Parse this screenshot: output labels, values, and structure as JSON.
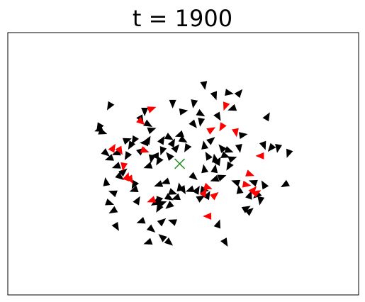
{
  "chart_data": {
    "type": "scatter",
    "title": "t = 1900",
    "xlabel": "",
    "ylabel": "",
    "xlim": [
      0,
      100
    ],
    "ylim": [
      0,
      100
    ],
    "grid": false,
    "axes_ticks": false,
    "colors": {
      "agent": "#000000",
      "highlighted_agent": "#ff0000",
      "center_marker": "#228b22"
    },
    "center": {
      "x": 49,
      "y": 50,
      "marker": "x-cross"
    },
    "series": [
      {
        "points": [
          {
            "x": 56,
            "y": 80,
            "angle": -80
          },
          {
            "x": 47,
            "y": 73,
            "angle": -90
          },
          {
            "x": 59,
            "y": 76,
            "angle": -70
          },
          {
            "x": 60,
            "y": 68,
            "angle": -60
          },
          {
            "x": 63,
            "y": 77,
            "angle": -10
          },
          {
            "x": 66,
            "y": 77,
            "angle": 50
          },
          {
            "x": 50,
            "y": 70,
            "angle": 10
          },
          {
            "x": 55,
            "y": 69,
            "angle": -30
          },
          {
            "x": 55,
            "y": 66,
            "angle": -100
          },
          {
            "x": 53,
            "y": 65,
            "angle": -50
          },
          {
            "x": 49,
            "y": 61,
            "angle": 200
          },
          {
            "x": 50,
            "y": 59,
            "angle": -30
          },
          {
            "x": 51,
            "y": 56,
            "angle": -120
          },
          {
            "x": 56,
            "y": 57,
            "angle": 100
          },
          {
            "x": 58,
            "y": 59,
            "angle": 40
          },
          {
            "x": 57,
            "y": 53,
            "angle": 120
          },
          {
            "x": 59,
            "y": 52,
            "angle": 100
          },
          {
            "x": 60,
            "y": 51,
            "angle": 60
          },
          {
            "x": 63,
            "y": 55,
            "angle": -20
          },
          {
            "x": 61,
            "y": 56,
            "angle": 130
          },
          {
            "x": 59,
            "y": 48,
            "angle": 80
          },
          {
            "x": 56,
            "y": 48,
            "angle": 100
          },
          {
            "x": 59,
            "y": 44,
            "angle": -160
          },
          {
            "x": 56,
            "y": 40,
            "angle": -10
          },
          {
            "x": 57,
            "y": 38,
            "angle": 60
          },
          {
            "x": 55,
            "y": 37,
            "angle": 30
          },
          {
            "x": 48,
            "y": 37,
            "angle": -160
          },
          {
            "x": 50,
            "y": 40,
            "angle": -60
          },
          {
            "x": 47,
            "y": 39,
            "angle": -20
          },
          {
            "x": 43,
            "y": 36,
            "angle": -110
          },
          {
            "x": 42,
            "y": 35,
            "angle": -150
          },
          {
            "x": 46,
            "y": 34,
            "angle": -140
          },
          {
            "x": 43,
            "y": 33,
            "angle": -120
          },
          {
            "x": 37,
            "y": 36,
            "angle": 60
          },
          {
            "x": 36,
            "y": 42,
            "angle": -120
          },
          {
            "x": 30,
            "y": 39,
            "angle": 160
          },
          {
            "x": 30,
            "y": 32,
            "angle": 210
          },
          {
            "x": 28,
            "y": 43,
            "angle": 100
          },
          {
            "x": 32,
            "y": 45,
            "angle": -40
          },
          {
            "x": 31,
            "y": 54,
            "angle": 200
          },
          {
            "x": 34,
            "y": 53,
            "angle": 240
          },
          {
            "x": 35,
            "y": 57,
            "angle": -120
          },
          {
            "x": 36,
            "y": 59,
            "angle": 240
          },
          {
            "x": 39,
            "y": 58,
            "angle": 180
          },
          {
            "x": 38,
            "y": 55,
            "angle": 40
          },
          {
            "x": 40,
            "y": 59,
            "angle": 60
          },
          {
            "x": 41,
            "y": 52,
            "angle": -100
          },
          {
            "x": 42,
            "y": 53,
            "angle": 180
          },
          {
            "x": 44,
            "y": 55,
            "angle": -110
          },
          {
            "x": 46,
            "y": 53,
            "angle": 130
          },
          {
            "x": 47,
            "y": 58,
            "angle": 60
          },
          {
            "x": 48,
            "y": 56,
            "angle": 50
          },
          {
            "x": 46,
            "y": 60,
            "angle": -30
          },
          {
            "x": 44,
            "y": 59,
            "angle": 60
          },
          {
            "x": 40,
            "y": 65,
            "angle": -30
          },
          {
            "x": 41,
            "y": 63,
            "angle": 20
          },
          {
            "x": 38,
            "y": 67,
            "angle": -60
          },
          {
            "x": 39,
            "y": 70,
            "angle": -90
          },
          {
            "x": 29,
            "y": 72,
            "angle": -120
          },
          {
            "x": 27,
            "y": 62,
            "angle": -20
          },
          {
            "x": 26,
            "y": 63,
            "angle": -160
          },
          {
            "x": 28,
            "y": 54,
            "angle": -40
          },
          {
            "x": 31,
            "y": 49,
            "angle": -160
          },
          {
            "x": 41,
            "y": 25,
            "angle": -40
          },
          {
            "x": 40,
            "y": 20,
            "angle": -160
          },
          {
            "x": 44,
            "y": 22,
            "angle": 140
          },
          {
            "x": 46,
            "y": 20,
            "angle": -40
          },
          {
            "x": 62,
            "y": 20,
            "angle": -60
          },
          {
            "x": 60,
            "y": 27,
            "angle": 70
          },
          {
            "x": 68,
            "y": 33,
            "angle": 30
          },
          {
            "x": 69,
            "y": 32,
            "angle": 40
          },
          {
            "x": 71,
            "y": 38,
            "angle": -140
          },
          {
            "x": 72,
            "y": 36,
            "angle": -100
          },
          {
            "x": 73,
            "y": 42,
            "angle": 120
          },
          {
            "x": 70,
            "y": 43,
            "angle": 160
          },
          {
            "x": 69,
            "y": 38,
            "angle": 70
          },
          {
            "x": 73,
            "y": 57,
            "angle": -70
          },
          {
            "x": 75,
            "y": 56,
            "angle": -130
          },
          {
            "x": 77,
            "y": 56,
            "angle": -100
          },
          {
            "x": 80,
            "y": 54,
            "angle": -110
          },
          {
            "x": 79,
            "y": 42,
            "angle": -150
          },
          {
            "x": 74,
            "y": 68,
            "angle": 60
          },
          {
            "x": 64,
            "y": 52,
            "angle": 20
          },
          {
            "x": 66,
            "y": 56,
            "angle": -80
          },
          {
            "x": 67,
            "y": 61,
            "angle": 10
          },
          {
            "x": 62,
            "y": 53,
            "angle": -20
          },
          {
            "x": 31,
            "y": 26,
            "angle": -60
          },
          {
            "x": 29,
            "y": 35,
            "angle": -20
          },
          {
            "x": 26,
            "y": 64,
            "angle": -120
          },
          {
            "x": 43,
            "y": 42,
            "angle": 200
          },
          {
            "x": 46,
            "y": 37,
            "angle": -30
          },
          {
            "x": 52,
            "y": 40,
            "angle": 200
          },
          {
            "x": 53,
            "y": 45,
            "angle": -40
          },
          {
            "x": 49,
            "y": 41,
            "angle": 100
          },
          {
            "x": 45,
            "y": 43,
            "angle": 200
          },
          {
            "x": 36,
            "y": 40,
            "angle": -160
          },
          {
            "x": 34,
            "y": 59,
            "angle": 20
          },
          {
            "x": 44,
            "y": 35,
            "angle": 20
          },
          {
            "x": 63,
            "y": 49,
            "angle": -120
          },
          {
            "x": 54,
            "y": 40,
            "angle": 60
          },
          {
            "x": 38,
            "y": 28,
            "angle": -160
          },
          {
            "x": 44,
            "y": 28,
            "angle": 40
          },
          {
            "x": 47,
            "y": 28,
            "angle": 160
          },
          {
            "x": 64,
            "y": 71,
            "angle": -160
          },
          {
            "x": 53,
            "y": 73,
            "angle": -100
          },
          {
            "x": 29,
            "y": 52,
            "angle": 200
          },
          {
            "x": 33,
            "y": 47,
            "angle": 40
          },
          {
            "x": 40,
            "y": 49,
            "angle": 200
          },
          {
            "x": 43,
            "y": 51,
            "angle": -120
          },
          {
            "x": 61,
            "y": 45,
            "angle": 20
          },
          {
            "x": 65,
            "y": 43,
            "angle": 160
          },
          {
            "x": 66,
            "y": 40,
            "angle": 100
          }
        ]
      },
      {
        "points": [
          {
            "x": 41,
            "y": 71,
            "angle": 20
          },
          {
            "x": 38,
            "y": 66,
            "angle": -40
          },
          {
            "x": 58,
            "y": 63,
            "angle": 30
          },
          {
            "x": 61,
            "y": 64,
            "angle": -120
          },
          {
            "x": 62,
            "y": 72,
            "angle": -110
          },
          {
            "x": 65,
            "y": 62,
            "angle": -80
          },
          {
            "x": 30,
            "y": 56,
            "angle": 60
          },
          {
            "x": 32,
            "y": 55,
            "angle": -60
          },
          {
            "x": 39,
            "y": 55,
            "angle": -20
          },
          {
            "x": 33,
            "y": 49,
            "angle": -100
          },
          {
            "x": 34,
            "y": 45,
            "angle": 70
          },
          {
            "x": 35,
            "y": 44,
            "angle": -60
          },
          {
            "x": 69,
            "y": 46,
            "angle": -20
          },
          {
            "x": 72,
            "y": 53,
            "angle": 180
          },
          {
            "x": 68,
            "y": 42,
            "angle": -10
          },
          {
            "x": 70,
            "y": 40,
            "angle": 50
          },
          {
            "x": 71,
            "y": 39,
            "angle": 30
          },
          {
            "x": 57,
            "y": 41,
            "angle": -20
          },
          {
            "x": 56,
            "y": 39,
            "angle": 60
          },
          {
            "x": 59,
            "y": 38,
            "angle": 40
          },
          {
            "x": 41,
            "y": 36,
            "angle": 200
          },
          {
            "x": 57,
            "y": 30,
            "angle": 180
          }
        ]
      }
    ]
  }
}
